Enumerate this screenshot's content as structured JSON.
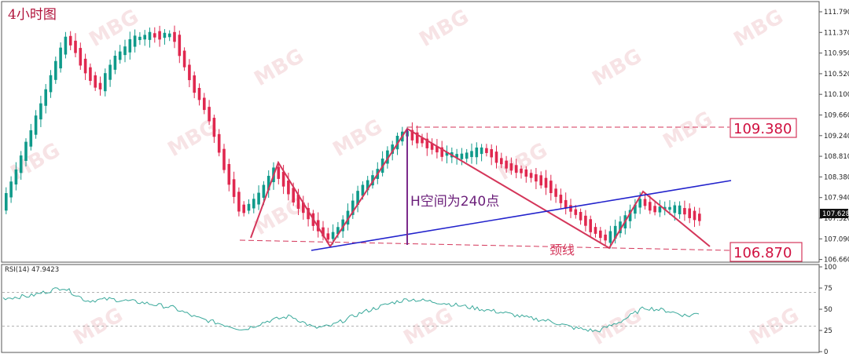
{
  "chart_data": {
    "type": "candlestick",
    "title": "4小时图",
    "price_axis": {
      "range": [
        106.56,
        111.89
      ],
      "ticks": [
        "111.790",
        "111.370",
        "110.950",
        "110.520",
        "110.100",
        "109.660",
        "109.240",
        "108.810",
        "108.380",
        "107.940",
        "107.520",
        "107.090",
        "106.660"
      ],
      "current_price": "107.628"
    },
    "rsi": {
      "label": "RSI(14) 47.9423",
      "range": [
        0,
        100
      ],
      "ticks": [
        "100",
        "75",
        "50",
        "25",
        "0"
      ],
      "levels": [
        70,
        30
      ]
    },
    "annotations": {
      "top_price": "109.380",
      "neck_price": "106.870",
      "height_text": "H空间为240点",
      "neckline_text": "颈线"
    },
    "colors": {
      "up": "#0f9a8a",
      "down": "#e0284f",
      "pattern_line": "#d4365a",
      "trend_line": "#2222cc",
      "height_line": "#7b2a8b",
      "rsi_line": "#3aa99b"
    },
    "watermark": "MBG"
  }
}
